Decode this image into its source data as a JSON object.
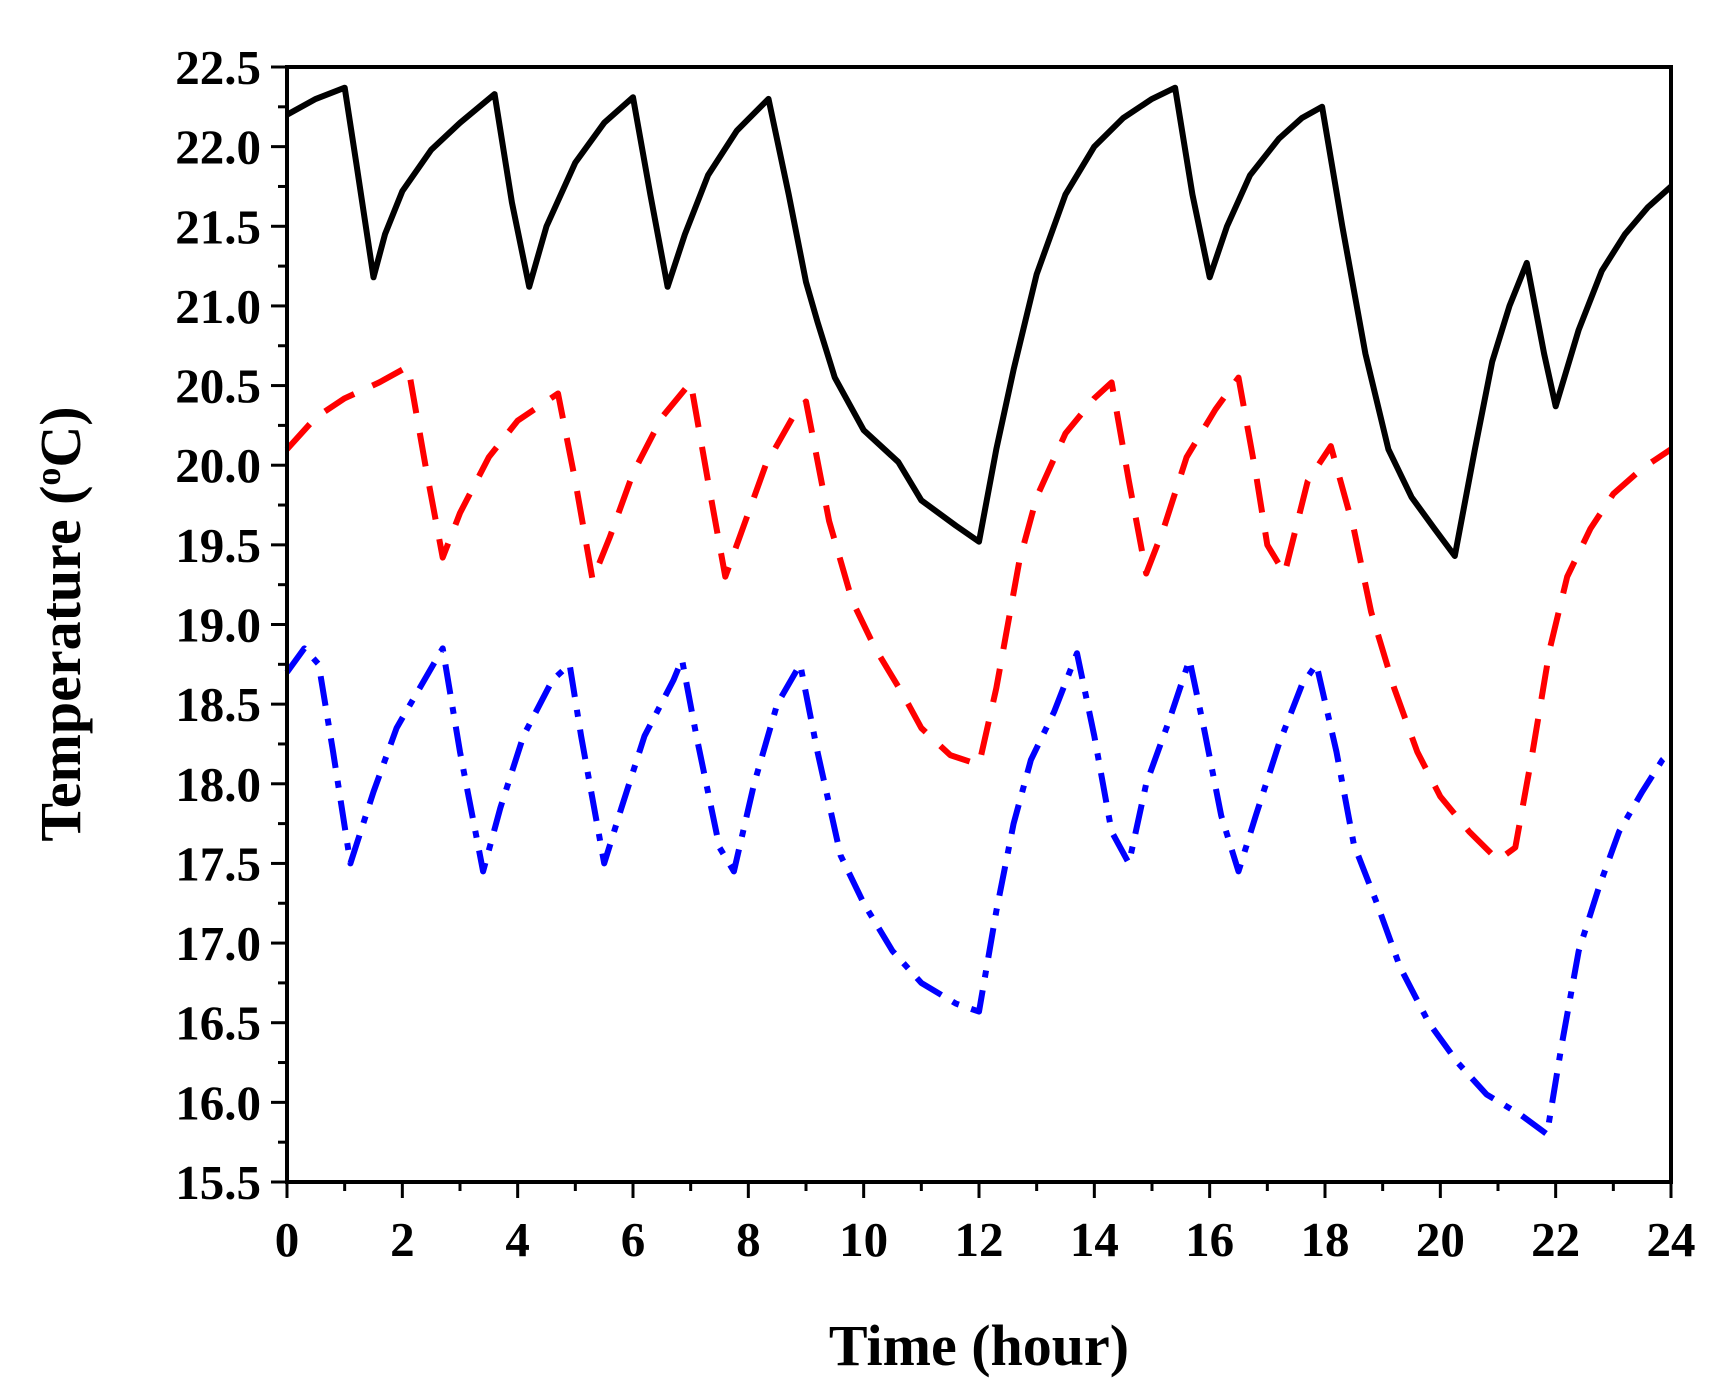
{
  "chart_data": {
    "type": "line",
    "title": "",
    "xlabel": "Time (hour)",
    "ylabel": {
      "prefix": "Temperature (",
      "sup": "o",
      "suffix": "C)"
    },
    "xlim": [
      0,
      24
    ],
    "ylim": [
      15.5,
      22.5
    ],
    "xticks": [
      "0",
      "2",
      "4",
      "6",
      "8",
      "10",
      "12",
      "14",
      "16",
      "18",
      "20",
      "22",
      "24"
    ],
    "yticks": [
      "15.5",
      "16.0",
      "16.5",
      "17.0",
      "17.5",
      "18.0",
      "18.5",
      "19.0",
      "19.5",
      "20.0",
      "20.5",
      "21.0",
      "21.5",
      "22.0",
      "22.5"
    ],
    "grid": false,
    "series": [
      {
        "name": "series-solid-black",
        "color": "#000000",
        "style": "solid",
        "points": [
          [
            0,
            22.2
          ],
          [
            0.5,
            22.3
          ],
          [
            1.0,
            22.37
          ],
          [
            1.2,
            21.9
          ],
          [
            1.5,
            21.18
          ],
          [
            1.7,
            21.45
          ],
          [
            2.0,
            21.72
          ],
          [
            2.5,
            21.98
          ],
          [
            3.0,
            22.15
          ],
          [
            3.6,
            22.33
          ],
          [
            3.9,
            21.65
          ],
          [
            4.2,
            21.12
          ],
          [
            4.5,
            21.5
          ],
          [
            5.0,
            21.9
          ],
          [
            5.5,
            22.15
          ],
          [
            6.0,
            22.31
          ],
          [
            6.3,
            21.7
          ],
          [
            6.6,
            21.12
          ],
          [
            6.9,
            21.45
          ],
          [
            7.3,
            21.82
          ],
          [
            7.8,
            22.1
          ],
          [
            8.35,
            22.3
          ],
          [
            8.7,
            21.7
          ],
          [
            9.0,
            21.15
          ],
          [
            9.2,
            20.9
          ],
          [
            9.5,
            20.55
          ],
          [
            10.0,
            20.22
          ],
          [
            10.6,
            20.02
          ],
          [
            11.0,
            19.78
          ],
          [
            11.6,
            19.62
          ],
          [
            12.0,
            19.52
          ],
          [
            12.3,
            20.1
          ],
          [
            12.6,
            20.6
          ],
          [
            13.0,
            21.2
          ],
          [
            13.5,
            21.7
          ],
          [
            14.0,
            22.0
          ],
          [
            14.5,
            22.18
          ],
          [
            15.0,
            22.3
          ],
          [
            15.4,
            22.37
          ],
          [
            15.7,
            21.7
          ],
          [
            16.0,
            21.18
          ],
          [
            16.3,
            21.5
          ],
          [
            16.7,
            21.82
          ],
          [
            17.2,
            22.05
          ],
          [
            17.6,
            22.18
          ],
          [
            17.95,
            22.25
          ],
          [
            18.3,
            21.5
          ],
          [
            18.7,
            20.7
          ],
          [
            19.1,
            20.1
          ],
          [
            19.5,
            19.8
          ],
          [
            19.9,
            19.6
          ],
          [
            20.25,
            19.43
          ],
          [
            20.6,
            20.1
          ],
          [
            20.9,
            20.65
          ],
          [
            21.2,
            21.0
          ],
          [
            21.5,
            21.27
          ],
          [
            21.8,
            20.7
          ],
          [
            22.0,
            20.37
          ],
          [
            22.4,
            20.85
          ],
          [
            22.8,
            21.22
          ],
          [
            23.2,
            21.45
          ],
          [
            23.6,
            21.62
          ],
          [
            24.0,
            21.75
          ]
        ]
      },
      {
        "name": "series-dashed-red",
        "color": "#ff0000",
        "style": "dashed",
        "points": [
          [
            0,
            20.1
          ],
          [
            0.5,
            20.3
          ],
          [
            1.0,
            20.42
          ],
          [
            1.6,
            20.52
          ],
          [
            2.1,
            20.62
          ],
          [
            2.4,
            20.0
          ],
          [
            2.7,
            19.42
          ],
          [
            3.0,
            19.7
          ],
          [
            3.5,
            20.05
          ],
          [
            4.0,
            20.28
          ],
          [
            4.7,
            20.45
          ],
          [
            5.0,
            19.9
          ],
          [
            5.3,
            19.28
          ],
          [
            5.6,
            19.55
          ],
          [
            6.0,
            19.95
          ],
          [
            6.5,
            20.3
          ],
          [
            7.0,
            20.52
          ],
          [
            7.3,
            19.9
          ],
          [
            7.6,
            19.3
          ],
          [
            7.9,
            19.6
          ],
          [
            8.3,
            20.0
          ],
          [
            8.8,
            20.32
          ],
          [
            9.0,
            20.4
          ],
          [
            9.4,
            19.65
          ],
          [
            9.8,
            19.15
          ],
          [
            10.2,
            18.85
          ],
          [
            10.7,
            18.55
          ],
          [
            11.0,
            18.35
          ],
          [
            11.5,
            18.18
          ],
          [
            12.0,
            18.12
          ],
          [
            12.3,
            18.6
          ],
          [
            12.7,
            19.4
          ],
          [
            13.0,
            19.8
          ],
          [
            13.5,
            20.2
          ],
          [
            14.0,
            20.42
          ],
          [
            14.3,
            20.52
          ],
          [
            14.6,
            19.9
          ],
          [
            14.9,
            19.32
          ],
          [
            15.2,
            19.6
          ],
          [
            15.6,
            20.05
          ],
          [
            16.1,
            20.35
          ],
          [
            16.5,
            20.55
          ],
          [
            16.8,
            19.95
          ],
          [
            17.0,
            19.5
          ],
          [
            17.3,
            19.32
          ],
          [
            17.7,
            19.9
          ],
          [
            18.1,
            20.12
          ],
          [
            18.5,
            19.6
          ],
          [
            18.8,
            19.08
          ],
          [
            19.2,
            18.6
          ],
          [
            19.6,
            18.2
          ],
          [
            20.0,
            17.92
          ],
          [
            20.5,
            17.7
          ],
          [
            21.0,
            17.52
          ],
          [
            21.3,
            17.6
          ],
          [
            21.6,
            18.2
          ],
          [
            21.9,
            18.85
          ],
          [
            22.2,
            19.3
          ],
          [
            22.6,
            19.6
          ],
          [
            23.0,
            19.82
          ],
          [
            23.5,
            19.98
          ],
          [
            24.0,
            20.1
          ]
        ]
      },
      {
        "name": "series-dashdot-blue",
        "color": "#0000ff",
        "style": "dashdot",
        "points": [
          [
            0,
            18.7
          ],
          [
            0.3,
            18.85
          ],
          [
            0.55,
            18.75
          ],
          [
            0.8,
            18.2
          ],
          [
            1.1,
            17.5
          ],
          [
            1.5,
            17.95
          ],
          [
            1.9,
            18.35
          ],
          [
            2.3,
            18.6
          ],
          [
            2.7,
            18.85
          ],
          [
            3.0,
            18.2
          ],
          [
            3.4,
            17.45
          ],
          [
            3.7,
            17.85
          ],
          [
            4.1,
            18.3
          ],
          [
            4.6,
            18.65
          ],
          [
            4.9,
            18.75
          ],
          [
            5.1,
            18.3
          ],
          [
            5.5,
            17.5
          ],
          [
            5.8,
            17.85
          ],
          [
            6.2,
            18.3
          ],
          [
            6.7,
            18.65
          ],
          [
            6.85,
            18.78
          ],
          [
            7.1,
            18.3
          ],
          [
            7.5,
            17.6
          ],
          [
            7.75,
            17.45
          ],
          [
            8.1,
            18.0
          ],
          [
            8.5,
            18.5
          ],
          [
            8.9,
            18.75
          ],
          [
            9.2,
            18.2
          ],
          [
            9.6,
            17.55
          ],
          [
            10.0,
            17.25
          ],
          [
            10.5,
            16.95
          ],
          [
            11.0,
            16.75
          ],
          [
            11.6,
            16.62
          ],
          [
            12.0,
            16.57
          ],
          [
            12.3,
            17.2
          ],
          [
            12.6,
            17.75
          ],
          [
            12.9,
            18.15
          ],
          [
            13.3,
            18.45
          ],
          [
            13.7,
            18.82
          ],
          [
            14.0,
            18.3
          ],
          [
            14.3,
            17.7
          ],
          [
            14.6,
            17.5
          ],
          [
            14.9,
            18.0
          ],
          [
            15.3,
            18.4
          ],
          [
            15.65,
            18.78
          ],
          [
            15.9,
            18.35
          ],
          [
            16.2,
            17.8
          ],
          [
            16.5,
            17.45
          ],
          [
            16.8,
            17.8
          ],
          [
            17.2,
            18.25
          ],
          [
            17.6,
            18.62
          ],
          [
            17.85,
            18.75
          ],
          [
            18.2,
            18.2
          ],
          [
            18.5,
            17.62
          ],
          [
            18.9,
            17.25
          ],
          [
            19.3,
            16.85
          ],
          [
            19.8,
            16.5
          ],
          [
            20.3,
            16.25
          ],
          [
            20.8,
            16.05
          ],
          [
            21.4,
            15.92
          ],
          [
            21.85,
            15.8
          ],
          [
            22.1,
            16.35
          ],
          [
            22.4,
            16.95
          ],
          [
            22.75,
            17.35
          ],
          [
            23.1,
            17.7
          ],
          [
            23.5,
            17.95
          ],
          [
            23.85,
            18.15
          ],
          [
            24.0,
            18.2
          ]
        ]
      }
    ]
  }
}
